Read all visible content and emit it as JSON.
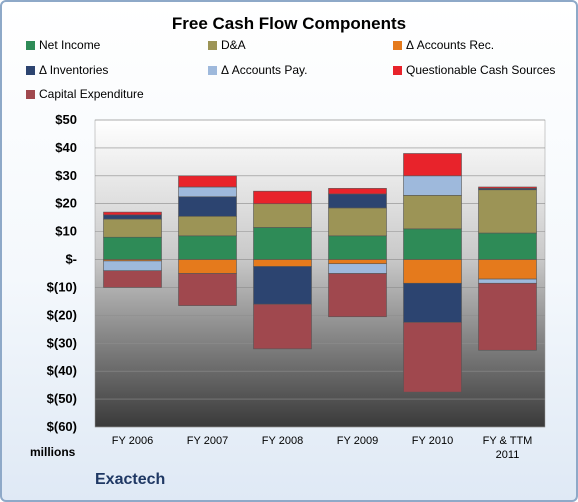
{
  "chart_data": {
    "type": "bar",
    "stacked": true,
    "title": "Free Cash Flow Components",
    "categories": [
      "FY 2006",
      "FY 2007",
      "FY 2008",
      "FY 2009",
      "FY 2010",
      "FY & TTM|2011"
    ],
    "ylim": [
      -60,
      50
    ],
    "yticks": [
      50,
      40,
      30,
      20,
      10,
      0,
      -10,
      -20,
      -30,
      -40,
      -50,
      -60
    ],
    "ytick_labels": [
      "$50",
      "$40",
      "$30",
      "$20",
      "$10",
      "$-",
      "$(10)",
      "$(20)",
      "$(30)",
      "$(40)",
      "$(50)",
      "$(60)"
    ],
    "ylabel_units": "millions",
    "legend_position": "top",
    "grid": true,
    "series": [
      {
        "name": "Net Income",
        "color": "#2e8b57",
        "values": [
          8,
          8.5,
          11.5,
          8.5,
          11,
          9.5
        ]
      },
      {
        "name": "D&A",
        "color": "#9c9456",
        "values": [
          6.5,
          7,
          8.5,
          10,
          12,
          15.5
        ]
      },
      {
        "name": "Δ Accounts Rec.",
        "color": "#e57a1c",
        "values": [
          -0.5,
          -5,
          -2.5,
          -1.5,
          -8.5,
          -7
        ]
      },
      {
        "name": "Δ Inventories",
        "color": "#2c4470",
        "values": [
          1.5,
          7,
          -13.5,
          5,
          -14,
          0.5
        ]
      },
      {
        "name": "Δ Accounts Pay.",
        "color": "#9eb9dc",
        "values": [
          -3.5,
          3.5,
          0,
          -3.5,
          7,
          -1.5
        ]
      },
      {
        "name": "Questionable Cash Sources",
        "color": "#e8232b",
        "values": [
          1,
          4,
          4.5,
          2,
          8,
          0.5
        ]
      },
      {
        "name": "Capital Expenditure",
        "color": "#a0484e",
        "values": [
          -6,
          -11.5,
          -16,
          -15.5,
          -25,
          -24
        ]
      }
    ],
    "company": "Exactech"
  }
}
